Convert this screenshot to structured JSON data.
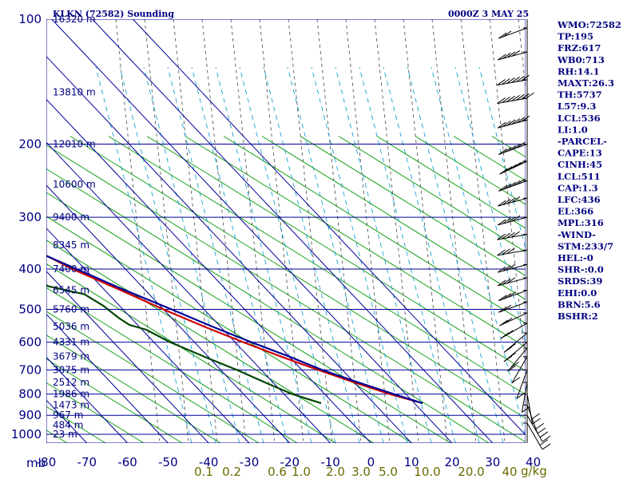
{
  "chart_data": {
    "type": "line",
    "title": "KLKN (72582) Sounding",
    "time_label": "0000Z  3 MAY 25",
    "x_axis_unit": "mb",
    "pressure_ticks": [
      100,
      200,
      300,
      400,
      500,
      600,
      700,
      800,
      900,
      1000
    ],
    "temperature_ticks": [
      -80,
      -70,
      -60,
      -50,
      -40,
      -30,
      -20,
      -10,
      0,
      10,
      20,
      30,
      40
    ],
    "mixing_ratio_labels": [
      "0.1",
      "0.2",
      "0.6",
      "1.0",
      "2.0",
      "3.0",
      "5.0",
      "10.0",
      "20.0",
      "40"
    ],
    "mixing_ratio_unit": "g/kg",
    "height_labels": [
      {
        "text": "16320 m",
        "p": 100
      },
      {
        "text": "13810 m",
        "p": 150
      },
      {
        "text": "12010 m",
        "p": 200
      },
      {
        "text": "10600 m",
        "p": 250
      },
      {
        "text": "9400 m",
        "p": 300
      },
      {
        "text": "8345 m",
        "p": 350
      },
      {
        "text": "7400 m",
        "p": 400
      },
      {
        "text": "6545 m",
        "p": 450
      },
      {
        "text": "5760 m",
        "p": 500
      },
      {
        "text": "5036 m",
        "p": 550
      },
      {
        "text": "4331 m",
        "p": 600
      },
      {
        "text": "3679 m",
        "p": 650
      },
      {
        "text": "3075 m",
        "p": 700
      },
      {
        "text": "2512 m",
        "p": 750
      },
      {
        "text": "1986 m",
        "p": 800
      },
      {
        "text": "1473 m",
        "p": 850
      },
      {
        "text": "967 m",
        "p": 900
      },
      {
        "text": "484 m",
        "p": 950
      },
      {
        "text": "23 m",
        "p": 1000
      }
    ],
    "series": [
      {
        "key": "temperature",
        "color": "#cc0000",
        "points": [
          [
            100,
            -62
          ],
          [
            110,
            -63
          ],
          [
            120,
            -62.5
          ],
          [
            133,
            -59
          ],
          [
            147,
            -56
          ],
          [
            160,
            -57
          ],
          [
            180,
            -61
          ],
          [
            200,
            -64
          ],
          [
            230,
            -59
          ],
          [
            270,
            -52
          ],
          [
            300,
            -47
          ],
          [
            350,
            -39
          ],
          [
            400,
            -33
          ],
          [
            450,
            -26
          ],
          [
            500,
            -20
          ],
          [
            550,
            -14
          ],
          [
            600,
            -8
          ],
          [
            650,
            -2
          ],
          [
            700,
            4
          ],
          [
            750,
            10
          ],
          [
            800,
            16
          ],
          [
            842,
            22
          ]
        ]
      },
      {
        "key": "dewpoint",
        "color": "#004400",
        "points": [
          [
            100,
            -80
          ],
          [
            110,
            -82
          ],
          [
            125,
            -78
          ],
          [
            138,
            -74
          ],
          [
            146,
            -70
          ],
          [
            158,
            -70
          ],
          [
            175,
            -70
          ],
          [
            200,
            -71
          ],
          [
            220,
            -69
          ],
          [
            245,
            -68
          ],
          [
            265,
            -64
          ],
          [
            300,
            -62
          ],
          [
            340,
            -60
          ],
          [
            370,
            -60
          ],
          [
            390,
            -52
          ],
          [
            420,
            -44
          ],
          [
            440,
            -43
          ],
          [
            460,
            -36
          ],
          [
            490,
            -34
          ],
          [
            525,
            -33
          ],
          [
            545,
            -32
          ],
          [
            560,
            -29
          ],
          [
            600,
            -26
          ],
          [
            650,
            -21
          ],
          [
            700,
            -16
          ],
          [
            750,
            -12
          ],
          [
            800,
            -8
          ],
          [
            842,
            -3
          ]
        ]
      },
      {
        "key": "parcel",
        "color": "#000099",
        "points": [
          [
            170,
            -90
          ],
          [
            200,
            -79
          ],
          [
            240,
            -67
          ],
          [
            275,
            -56
          ],
          [
            300,
            -50
          ],
          [
            350,
            -40
          ],
          [
            400,
            -32
          ],
          [
            450,
            -25
          ],
          [
            500,
            -18
          ],
          [
            550,
            -12
          ],
          [
            600,
            -6
          ],
          [
            650,
            0
          ],
          [
            700,
            5
          ],
          [
            750,
            11
          ],
          [
            800,
            17
          ],
          [
            842,
            22
          ]
        ]
      }
    ],
    "wind_barbs": [
      {
        "p": 105,
        "dir": 250,
        "spd": 20
      },
      {
        "p": 120,
        "dir": 255,
        "spd": 40
      },
      {
        "p": 140,
        "dir": 260,
        "spd": 60
      },
      {
        "p": 155,
        "dir": 260,
        "spd": 65
      },
      {
        "p": 175,
        "dir": 255,
        "spd": 55
      },
      {
        "p": 200,
        "dir": 250,
        "spd": 50
      },
      {
        "p": 220,
        "dir": 245,
        "spd": 45
      },
      {
        "p": 245,
        "dir": 250,
        "spd": 45
      },
      {
        "p": 270,
        "dir": 255,
        "spd": 40
      },
      {
        "p": 300,
        "dir": 255,
        "spd": 35
      },
      {
        "p": 330,
        "dir": 260,
        "spd": 35
      },
      {
        "p": 360,
        "dir": 260,
        "spd": 30
      },
      {
        "p": 390,
        "dir": 255,
        "spd": 30
      },
      {
        "p": 420,
        "dir": 255,
        "spd": 25
      },
      {
        "p": 450,
        "dir": 250,
        "spd": 25
      },
      {
        "p": 480,
        "dir": 250,
        "spd": 20
      },
      {
        "p": 510,
        "dir": 245,
        "spd": 20
      },
      {
        "p": 540,
        "dir": 240,
        "spd": 15
      },
      {
        "p": 570,
        "dir": 230,
        "spd": 15
      },
      {
        "p": 600,
        "dir": 230,
        "spd": 20
      },
      {
        "p": 620,
        "dir": 220,
        "spd": 15
      },
      {
        "p": 650,
        "dir": 210,
        "spd": 10
      },
      {
        "p": 700,
        "dir": 200,
        "spd": 10
      },
      {
        "p": 750,
        "dir": 190,
        "spd": 10
      },
      {
        "p": 800,
        "dir": 170,
        "spd": 15
      },
      {
        "p": 850,
        "dir": 160,
        "spd": 20
      },
      {
        "p": 900,
        "dir": 150,
        "spd": 20
      },
      {
        "p": 940,
        "dir": 150,
        "spd": 15
      }
    ],
    "indices": [
      "WMO:72582",
      "TP:195",
      "FRZ:617",
      "WB0:713",
      "RH:14.1",
      "MAXT:26.3",
      "TH:5737",
      "L57:9.3",
      "LCL:536",
      "LI:1.0",
      "-PARCEL-",
      "CAPE:13",
      "CINH:45",
      "LCL:511",
      "CAP:1.3",
      "LFC:436",
      "EL:366",
      "MPL:316",
      "-WIND-",
      "STM:233/7",
      "HEL:-0",
      "SHR-:0.0",
      "SRDS:39",
      "EHI:0.0",
      "BRN:5.6",
      "BSHR:2"
    ],
    "colors": {
      "grid": "#000099",
      "dry_adiabat": "#009900",
      "moist_adiabat": "#444444",
      "mixing_ratio": "#0099cc"
    }
  }
}
